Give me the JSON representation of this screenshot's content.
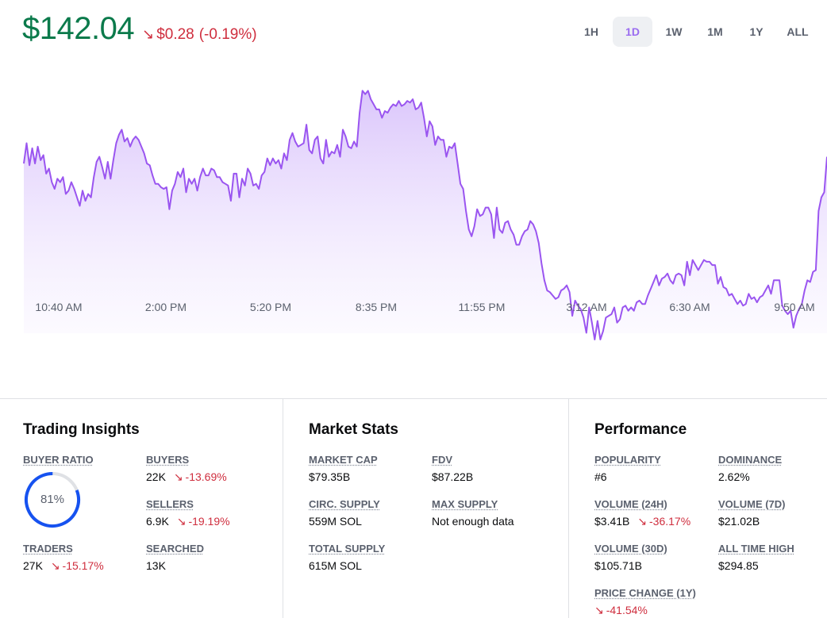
{
  "header": {
    "price": "$142.04",
    "change_arrow": "↘",
    "change_amount": "$0.28",
    "change_percent": "(-0.19%)"
  },
  "range_tabs": [
    {
      "label": "1H",
      "active": false
    },
    {
      "label": "1D",
      "active": true
    },
    {
      "label": "1W",
      "active": false
    },
    {
      "label": "1M",
      "active": false
    },
    {
      "label": "1Y",
      "active": false
    },
    {
      "label": "ALL",
      "active": false
    }
  ],
  "chart_data": {
    "type": "area",
    "x_tick_labels": [
      "10:40 AM",
      "2:00 PM",
      "5:20 PM",
      "8:35 PM",
      "11:55 PM",
      "3:12 AM",
      "6:30 AM",
      "9:50 AM"
    ],
    "series": [
      {
        "values": [
          142.4,
          143.6,
          142.3,
          143.3,
          142.4,
          143.4,
          142.6,
          142.9,
          141.8,
          142.1,
          141.3,
          140.9,
          141.5,
          141.3,
          141.6,
          140.6,
          140.8,
          141.3,
          140.9,
          140.4,
          139.9,
          140.8,
          140.2,
          140.6,
          140.4,
          141.6,
          142.5,
          142.8,
          142.2,
          141.5,
          142.5,
          141.5,
          142.6,
          143.6,
          144.1,
          144.4,
          143.7,
          143.9,
          143.4,
          143.8,
          144.0,
          143.8,
          143.4,
          143.0,
          142.4,
          142.3,
          141.7,
          141.2,
          141.2,
          141.0,
          140.9,
          141.0,
          139.7,
          140.8,
          141.2,
          141.9,
          141.6,
          142.1,
          140.7,
          141.5,
          141.2,
          141.5,
          140.8,
          141.6,
          142.1,
          141.7,
          141.7,
          142.1,
          142.0,
          141.6,
          141.6,
          141.3,
          141.2,
          141.1,
          140.2,
          141.8,
          141.8,
          140.4,
          141.5,
          141.1,
          142.1,
          141.8,
          141.1,
          141.2,
          140.9,
          141.7,
          141.9,
          142.7,
          142.3,
          142.7,
          142.4,
          142.6,
          142.1,
          143.0,
          142.6,
          143.8,
          144.2,
          143.7,
          143.4,
          143.5,
          143.6,
          144.7,
          143.2,
          143.0,
          143.8,
          144.0,
          142.7,
          142.4,
          143.8,
          142.8,
          143.1,
          143.0,
          143.5,
          142.8,
          144.4,
          144.0,
          143.4,
          143.3,
          143.7,
          143.4,
          145.4,
          146.7,
          146.5,
          146.7,
          146.2,
          145.9,
          145.6,
          145.6,
          145.1,
          145.5,
          145.4,
          145.7,
          145.9,
          145.8,
          146.1,
          145.8,
          145.9,
          146.1,
          146.0,
          146.2,
          145.6,
          145.7,
          146.0,
          145.1,
          144.0,
          144.9,
          144.6,
          143.5,
          144.0,
          143.8,
          143.8,
          142.8,
          143.4,
          143.3,
          143.6,
          142.4,
          141.2,
          140.9,
          139.6,
          138.5,
          138.1,
          138.7,
          139.7,
          139.3,
          139.4,
          139.8,
          139.8,
          139.4,
          138.0,
          139.8,
          138.5,
          138.3,
          138.9,
          139.0,
          138.5,
          138.2,
          137.6,
          137.6,
          138.1,
          138.4,
          138.5,
          139.0,
          138.8,
          138.4,
          137.7,
          136.5,
          135.5,
          134.9,
          134.8,
          134.6,
          134.4,
          134.5,
          134.9,
          135.0,
          135.2,
          134.8,
          133.4,
          134.3,
          134.0,
          133.8,
          133.3,
          132.4,
          133.9,
          133.0,
          132.0,
          133.1,
          132.0,
          132.5,
          133.3,
          133.4,
          133.5,
          133.9,
          133.0,
          133.2,
          133.9,
          134.0,
          133.7,
          133.9,
          133.7,
          134.2,
          134.3,
          134.1,
          134.1,
          134.6,
          135.0,
          135.4,
          135.8,
          135.2,
          135.6,
          135.7,
          135.9,
          135.5,
          135.3,
          135.8,
          135.9,
          135.8,
          135.2,
          136.6,
          135.8,
          136.7,
          136.4,
          136.1,
          136.4,
          136.7,
          136.6,
          136.6,
          136.4,
          136.4,
          135.3,
          135.7,
          135.1,
          135.0,
          134.6,
          134.7,
          134.4,
          134.1,
          134.3,
          134.0,
          134.1,
          134.7,
          134.4,
          134.5,
          134.2,
          134.5,
          134.6,
          134.9,
          135.2,
          134.7,
          135.5,
          135.5,
          135.5,
          134.0,
          133.7,
          133.5,
          133.7,
          132.7,
          133.4,
          133.8,
          134.1,
          134.9,
          135.5,
          135.4,
          136.0,
          136.1,
          139.6,
          140.4,
          140.7,
          142.8
        ]
      }
    ]
  },
  "insights": {
    "title": "Trading Insights",
    "buyer_ratio_label": "BUYER RATIO",
    "buyer_ratio_value": "81%",
    "buyer_ratio_fraction": 0.81,
    "buyers_label": "BUYERS",
    "buyers_value": "22K",
    "buyers_change": "-13.69%",
    "sellers_label": "SELLERS",
    "sellers_value": "6.9K",
    "sellers_change": "-19.19%",
    "traders_label": "TRADERS",
    "traders_value": "27K",
    "traders_change": "-15.17%",
    "searched_label": "SEARCHED",
    "searched_value": "13K"
  },
  "market": {
    "title": "Market Stats",
    "market_cap_label": "MARKET CAP",
    "market_cap_value": "$79.35B",
    "fdv_label": "FDV",
    "fdv_value": "$87.22B",
    "circ_supply_label": "CIRC. SUPPLY",
    "circ_supply_value": "559M SOL",
    "max_supply_label": "MAX SUPPLY",
    "max_supply_value": "Not enough data",
    "total_supply_label": "TOTAL SUPPLY",
    "total_supply_value": "615M SOL"
  },
  "performance": {
    "title": "Performance",
    "popularity_label": "POPULARITY",
    "popularity_value": "#6",
    "dominance_label": "DOMINANCE",
    "dominance_value": "2.62%",
    "volume_24h_label": "VOLUME (24H)",
    "volume_24h_value": "$3.41B",
    "volume_24h_change": "-36.17%",
    "volume_7d_label": "VOLUME (7D)",
    "volume_7d_value": "$21.02B",
    "volume_30d_label": "VOLUME (30D)",
    "volume_30d_value": "$105.71B",
    "ath_label": "ALL TIME HIGH",
    "ath_value": "$294.85",
    "price_change_1y_label": "PRICE CHANGE (1Y)",
    "price_change_1y_value": "-41.54%"
  },
  "colors": {
    "price_green": "#0b7a4b",
    "down_red": "#cf2e3e",
    "chart_line": "#9a55f0",
    "chart_fill": "#e9dbfd",
    "ring_blue": "#1652f0",
    "ring_track": "#dfe1e5",
    "tab_active": "#9a6cf0"
  },
  "icons": {
    "down_arrow": "↘"
  }
}
